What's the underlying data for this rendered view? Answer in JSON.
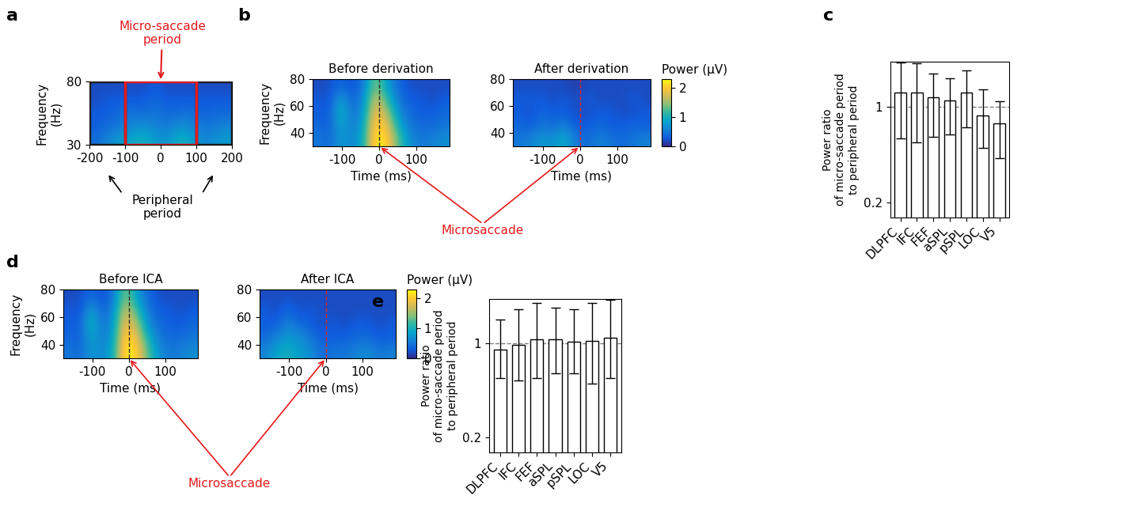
{
  "chart_data": [
    {
      "panel_label": "a",
      "type": "heatmap",
      "y_label": "Frequency\n(Hz)",
      "xlim": [
        -200,
        200
      ],
      "ylim": [
        30,
        80
      ],
      "xticks": [
        -200,
        -100,
        0,
        100,
        200
      ],
      "yticks": [
        30,
        80
      ],
      "color_range": [
        0,
        2.3
      ],
      "z": [
        [
          0.4,
          0.6,
          0.8,
          0.9,
          1.0,
          0.8,
          0.7,
          1.0,
          0.9,
          0.6,
          0.7,
          0.8
        ],
        [
          0.3,
          0.4,
          0.5,
          0.6,
          0.7,
          0.6,
          0.5,
          0.7,
          0.6,
          0.5,
          0.5,
          0.6
        ],
        [
          0.3,
          0.3,
          0.4,
          0.5,
          0.4,
          0.5,
          0.4,
          0.4,
          0.5,
          0.3,
          0.4,
          0.4
        ],
        [
          0.2,
          0.3,
          0.3,
          0.3,
          0.3,
          0.4,
          0.3,
          0.3,
          0.3,
          0.3,
          0.3,
          0.3
        ],
        [
          0.2,
          0.2,
          0.2,
          0.2,
          0.2,
          0.3,
          0.2,
          0.2,
          0.2,
          0.2,
          0.2,
          0.2
        ]
      ],
      "micro_saccade_period": [
        -100,
        100
      ],
      "peripheral_periods": [
        [
          -200,
          -100
        ],
        [
          100,
          200
        ]
      ],
      "period_label": "Micro-saccade\nperiod",
      "peripheral_label": "Peripheral\nperiod"
    },
    {
      "panel_label": "b",
      "type": "heatmap",
      "title": "Before derivation",
      "x_label": "Time (ms)",
      "y_label": "Frequency\n(Hz)",
      "xlim": [
        -180,
        190
      ],
      "ylim": [
        30,
        80
      ],
      "xticks": [
        -100,
        0,
        100
      ],
      "yticks": [
        40,
        60,
        80
      ],
      "color_range": [
        0,
        2.3
      ],
      "event_time": 0,
      "color": "#333333",
      "annotation": "Microsaccade",
      "z": [
        [
          0.5,
          0.4,
          0.8,
          0.6,
          1.0,
          2.3,
          2.1,
          1.3,
          0.7,
          0.5,
          0.6,
          0.7
        ],
        [
          0.4,
          0.3,
          0.9,
          0.5,
          0.9,
          2.2,
          1.9,
          1.0,
          0.5,
          0.4,
          0.4,
          0.5
        ],
        [
          0.3,
          0.3,
          1.1,
          0.4,
          0.8,
          2.0,
          1.6,
          0.7,
          0.4,
          0.3,
          0.3,
          0.4
        ],
        [
          0.3,
          0.2,
          0.9,
          0.3,
          0.7,
          1.8,
          1.2,
          0.5,
          0.3,
          0.3,
          0.2,
          0.3
        ],
        [
          0.2,
          0.2,
          0.4,
          0.2,
          0.5,
          1.5,
          0.8,
          0.4,
          0.2,
          0.2,
          0.2,
          0.2
        ]
      ]
    },
    {
      "type": "heatmap",
      "title": "After derivation",
      "x_label": "Time (ms)",
      "xlim": [
        -180,
        190
      ],
      "ylim": [
        30,
        80
      ],
      "xticks": [
        -100,
        0,
        100
      ],
      "yticks": [
        40,
        60,
        80
      ],
      "color_range": [
        0,
        2.3
      ],
      "event_time": 0,
      "color": "#d62728",
      "colorbar": {
        "label": "Power (µV)",
        "ticks": [
          0,
          1,
          2
        ]
      },
      "z": [
        [
          0.5,
          0.6,
          0.8,
          0.7,
          1.0,
          0.5,
          0.4,
          0.6,
          0.5,
          0.4,
          0.5,
          0.6
        ],
        [
          0.4,
          0.3,
          0.5,
          0.4,
          0.6,
          0.3,
          0.3,
          0.4,
          0.3,
          0.3,
          0.4,
          0.3
        ],
        [
          0.3,
          0.2,
          0.4,
          0.3,
          0.3,
          0.2,
          0.2,
          0.3,
          0.3,
          0.2,
          0.2,
          0.3
        ],
        [
          0.3,
          0.3,
          0.3,
          0.2,
          0.3,
          0.2,
          0.3,
          0.2,
          0.2,
          0.2,
          0.3,
          0.2
        ],
        [
          0.2,
          0.2,
          0.2,
          0.2,
          0.2,
          0.1,
          0.2,
          0.2,
          0.2,
          0.2,
          0.2,
          0.2
        ]
      ]
    },
    {
      "panel_label": "c",
      "type": "bar",
      "y_label": "Power ratio\nof micro-saccade period\nto peripheral period",
      "categories": [
        "DLPFC",
        "IFC",
        "FEF",
        "aSPL",
        "pSPL",
        "LOC",
        "V5"
      ],
      "values": [
        1.27,
        1.27,
        1.17,
        1.11,
        1.27,
        0.87,
        0.76
      ],
      "err_low": [
        0.59,
        0.55,
        0.6,
        0.63,
        0.71,
        0.5,
        0.42
      ],
      "err_high": [
        2.1,
        2.07,
        1.75,
        1.62,
        1.85,
        1.35,
        1.1
      ],
      "log": "y",
      "ylim": [
        0.155,
        2.14
      ],
      "yticks": [
        0.2,
        1
      ],
      "reference_line": 1,
      "color": "#ffffff"
    },
    {
      "panel_label": "d",
      "type": "heatmap",
      "title": "Before ICA",
      "x_label": "Time (ms)",
      "y_label": "Frequency\n(Hz)",
      "xlim": [
        -180,
        190
      ],
      "ylim": [
        30,
        80
      ],
      "xticks": [
        -100,
        0,
        100
      ],
      "yticks": [
        40,
        60,
        80
      ],
      "color_range": [
        0,
        2.3
      ],
      "event_time": 0,
      "color": "#333333",
      "annotation": "Microsaccade",
      "z": [
        [
          0.5,
          0.4,
          0.8,
          0.6,
          1.0,
          2.3,
          2.1,
          1.3,
          0.7,
          0.5,
          0.6,
          0.7
        ],
        [
          0.4,
          0.3,
          0.9,
          0.5,
          0.9,
          2.2,
          1.9,
          1.0,
          0.5,
          0.4,
          0.4,
          0.5
        ],
        [
          0.3,
          0.3,
          1.1,
          0.4,
          0.8,
          2.0,
          1.6,
          0.7,
          0.4,
          0.3,
          0.3,
          0.4
        ],
        [
          0.3,
          0.2,
          0.9,
          0.3,
          0.7,
          1.8,
          1.2,
          0.5,
          0.3,
          0.3,
          0.2,
          0.3
        ],
        [
          0.2,
          0.2,
          0.4,
          0.2,
          0.5,
          1.5,
          0.8,
          0.4,
          0.2,
          0.2,
          0.2,
          0.2
        ]
      ]
    },
    {
      "type": "heatmap",
      "title": "After ICA",
      "x_label": "Time (ms)",
      "xlim": [
        -180,
        190
      ],
      "ylim": [
        30,
        80
      ],
      "xticks": [
        -100,
        0,
        100
      ],
      "yticks": [
        40,
        60,
        80
      ],
      "color_range": [
        0,
        2.3
      ],
      "event_time": 0,
      "color": "#d62728",
      "colorbar": {
        "label": "Power (µV)",
        "ticks": [
          0,
          1,
          2
        ]
      },
      "z": [
        [
          0.6,
          0.9,
          1.0,
          0.8,
          0.7,
          0.4,
          0.5,
          0.5,
          0.6,
          0.7,
          0.5,
          0.6
        ],
        [
          0.4,
          0.6,
          0.8,
          0.7,
          0.5,
          0.3,
          0.3,
          0.3,
          0.4,
          0.4,
          0.3,
          0.3
        ],
        [
          0.3,
          0.3,
          0.6,
          0.4,
          0.3,
          0.2,
          0.3,
          0.2,
          0.3,
          0.3,
          0.2,
          0.3
        ],
        [
          0.3,
          0.2,
          0.4,
          0.2,
          0.3,
          0.2,
          0.2,
          0.2,
          0.2,
          0.2,
          0.2,
          0.2
        ],
        [
          0.2,
          0.2,
          0.2,
          0.2,
          0.2,
          0.2,
          0.2,
          0.2,
          0.2,
          0.2,
          0.2,
          0.2
        ]
      ]
    },
    {
      "panel_label": "e",
      "type": "bar",
      "y_label": "Power ratio\nof micro-saccade period\nto peripheral period",
      "categories": [
        "DLPFC",
        "IFC",
        "FEF",
        "aSPL",
        "pSPL",
        "LOC",
        "V5"
      ],
      "values": [
        0.9,
        0.97,
        1.07,
        1.08,
        1.03,
        1.04,
        1.11
      ],
      "err_low": [
        0.55,
        0.53,
        0.55,
        0.6,
        0.6,
        0.5,
        0.55
      ],
      "err_high": [
        1.5,
        1.8,
        2.0,
        1.85,
        1.8,
        2.0,
        2.1
      ],
      "log": "y",
      "ylim": [
        0.155,
        2.14
      ],
      "yticks": [
        0.2,
        1
      ],
      "reference_line": 1,
      "color": "#ffffff"
    }
  ]
}
